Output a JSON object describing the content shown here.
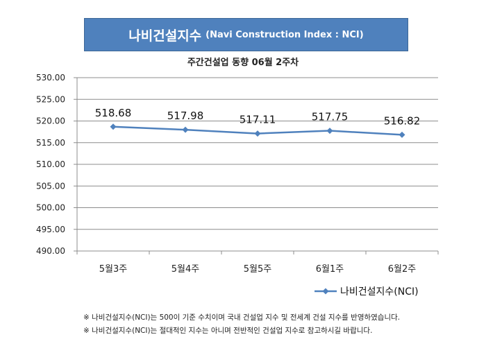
{
  "header": {
    "title_main": "나비건설지수",
    "title_sub": "(Navi Construction Index : NCI)"
  },
  "chart_data": {
    "type": "line",
    "title": "주간건설업 동향 06월 2주차",
    "categories": [
      "5월3주",
      "5월4주",
      "5월5주",
      "6월1주",
      "6월2주"
    ],
    "series": [
      {
        "name": "나비건설지수(NCI)",
        "values": [
          518.68,
          517.98,
          517.11,
          517.75,
          516.82
        ],
        "labels": [
          "518.68",
          "517.98",
          "517.11",
          "517.75",
          "516.82"
        ],
        "color": "#4f81bd"
      }
    ],
    "yticks": [
      "530.00",
      "525.00",
      "520.00",
      "515.00",
      "510.00",
      "505.00",
      "500.00",
      "495.00",
      "490.00"
    ],
    "ylim": [
      490,
      530
    ],
    "grid": true,
    "legend_position": "bottom-right"
  },
  "notes": [
    "※ 나비건설지수(NCI)는 500이 기준 수치이며 국내 건설업 지수 및 전세계 건설 지수를 반영하였습니다.",
    "※ 나비건설지수(NCI)는 절대적인 지수는 아니며 전반적인 건설업 지수로 참고하시길 바랍니다."
  ]
}
